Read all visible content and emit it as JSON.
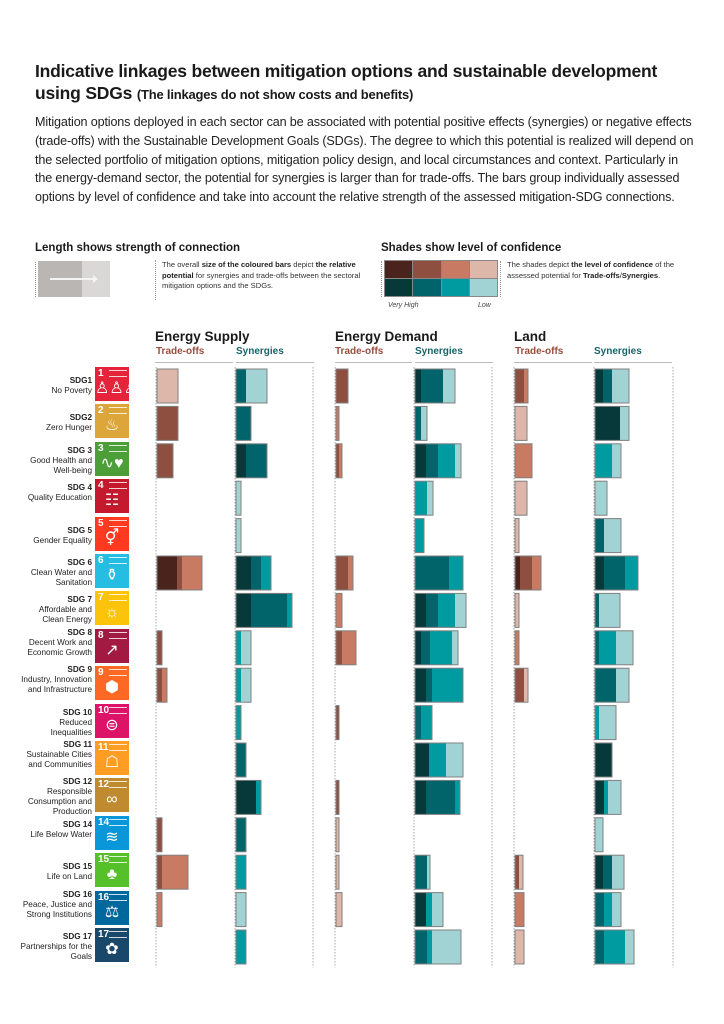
{
  "title": {
    "main": "Indicative linkages between mitigation options and sustainable development using SDGs",
    "subtitle": "(The linkages do not show costs and benefits)"
  },
  "intro": "Mitigation options deployed in each sector can be associated with potential positive effects (synergies) or negative effects (trade-offs) with the Sustainable Development Goals (SDGs). The degree to which this potential is realized will depend on the selected portfolio of mitigation options, mitigation policy design, and local circumstances and context. Particularly in the energy-demand sector, the potential for synergies is larger than for trade-offs. The bars group individually assessed options by level of confidence and take into account the relative strength of the assessed mitigation-SDG connections.",
  "legend": {
    "length": {
      "heading": "Length shows strength of connection",
      "text_pre": "The overall ",
      "text_b1": "size of the coloured bars",
      "text_mid": " depict ",
      "text_b2": "the relative potential",
      "text_post": " for synergies and trade-offs between the sectoral mitigation options and the SDGs."
    },
    "shades": {
      "heading": "Shades show level of confidence",
      "text_pre": "The shades depict ",
      "text_b": "the level of confidence",
      "text_mid": " of the assessed potential for ",
      "tradeoffs_word": "Trade-offs",
      "slash": "/",
      "synergies_word": "Synergies",
      "text_post": ".",
      "scale_high": "Very High",
      "scale_low": "Low"
    }
  },
  "colors": {
    "tradeoffs": {
      "very_high": "#4a231d",
      "high": "#8e4f40",
      "medium": "#c87a62",
      "low": "#ddb8aa"
    },
    "synergies": {
      "very_high": "#08393a",
      "high": "#01646b",
      "medium": "#009ba1",
      "low": "#a2d3d4"
    },
    "tradeoff_label": "#9a4e3e",
    "synergy_label": "#17646a"
  },
  "chart_data": {
    "type": "bar",
    "title": "Indicative linkages between mitigation options and sustainable development using SDGs",
    "orientation": "horizontal-stacked",
    "confidence_levels": [
      "very_high",
      "high",
      "medium",
      "low"
    ],
    "value_units": "relative strength (arbitrary units)",
    "sectors": [
      {
        "name": "Energy Supply"
      },
      {
        "name": "Energy Demand"
      },
      {
        "name": "Land"
      }
    ],
    "column_labels": {
      "tradeoffs": "Trade-offs",
      "synergies": "Synergies"
    },
    "sdgs": [
      {
        "num": "SDG1",
        "name": "No Poverty",
        "icon_color": "#e5243b",
        "icon_num": "1",
        "glyph": "people-icon",
        "g": "♙♙♙"
      },
      {
        "num": "SDG2",
        "name": "Zero Hunger",
        "icon_color": "#dda63a",
        "icon_num": "2",
        "glyph": "bowl-icon",
        "g": "♨"
      },
      {
        "num": "SDG 3",
        "name": "Good Health and Well-being",
        "icon_color": "#4c9f38",
        "icon_num": "3",
        "glyph": "heartbeat-icon",
        "g": "∿♥"
      },
      {
        "num": "SDG 4",
        "name": "Quality Education",
        "icon_color": "#c5192d",
        "icon_num": "4",
        "glyph": "book-icon",
        "g": "☷"
      },
      {
        "num": "SDG 5",
        "name": "Gender Equality",
        "icon_color": "#ff3a21",
        "icon_num": "5",
        "glyph": "gender-icon",
        "g": "⚥"
      },
      {
        "num": "SDG 6",
        "name": "Clean Water and Sanitation",
        "icon_color": "#26bde2",
        "icon_num": "6",
        "glyph": "water-icon",
        "g": "⚱"
      },
      {
        "num": "SDG 7",
        "name": "Affordable and Clean Energy",
        "icon_color": "#fcc30b",
        "icon_num": "7",
        "glyph": "sun-icon",
        "g": "☼"
      },
      {
        "num": "SDG 8",
        "name": "Decent Work and Economic Growth",
        "icon_color": "#a21942",
        "icon_num": "8",
        "glyph": "growth-chart-icon",
        "g": "↗"
      },
      {
        "num": "SDG 9",
        "name": "Industry, Innovation and Infrastructure",
        "icon_color": "#fd6925",
        "icon_num": "9",
        "glyph": "cubes-icon",
        "g": "⬢"
      },
      {
        "num": "SDG 10",
        "name": "Reduced Inequalities",
        "icon_color": "#dd1367",
        "icon_num": "10",
        "glyph": "equals-icon",
        "g": "⊜"
      },
      {
        "num": "SDG 11",
        "name": "Sustainable Cities and Communities",
        "icon_color": "#fd9d24",
        "icon_num": "11",
        "glyph": "city-icon",
        "g": "☖"
      },
      {
        "num": "SDG 12",
        "name": "Responsible Consumption and Production",
        "icon_color": "#bf8b2e",
        "icon_num": "12",
        "glyph": "infinity-icon",
        "g": "∞"
      },
      {
        "num": "SDG 14",
        "name": "Life Below Water",
        "icon_color": "#0a97d9",
        "icon_num": "14",
        "glyph": "fish-icon",
        "g": "≋"
      },
      {
        "num": "SDG 15",
        "name": "Life on Land",
        "icon_color": "#56c02b",
        "icon_num": "15",
        "glyph": "tree-icon",
        "g": "♣"
      },
      {
        "num": "SDG 16",
        "name": "Peace, Justice and Strong Institutions",
        "icon_color": "#00689d",
        "icon_num": "16",
        "glyph": "dove-icon",
        "g": "⚖"
      },
      {
        "num": "SDG 17",
        "name": "Partnerships for the Goals",
        "icon_color": "#19486a",
        "icon_num": "17",
        "glyph": "rings-icon",
        "g": "✿"
      }
    ],
    "series": [
      {
        "sector": "Energy Supply",
        "tradeoffs": [
          {
            "low": 21
          },
          {
            "high": 21
          },
          {
            "high": 16
          },
          {},
          {},
          {
            "very_high": 20,
            "high": 5,
            "medium": 20
          },
          {},
          {
            "high": 5
          },
          {
            "high": 5,
            "medium": 5
          },
          {},
          {},
          {},
          {
            "high": 5
          },
          {
            "high": 5,
            "medium": 26
          },
          {
            "medium": 5
          },
          {}
        ],
        "synergies": [
          {
            "high": 10,
            "low": 21
          },
          {
            "high": 15
          },
          {
            "very_high": 10,
            "high": 21
          },
          {
            "low": 5
          },
          {
            "low": 5
          },
          {
            "very_high": 15,
            "high": 10,
            "medium": 10
          },
          {
            "very_high": 15,
            "high": 36,
            "medium": 5
          },
          {
            "medium": 5,
            "low": 10
          },
          {
            "medium": 5,
            "low": 10
          },
          {
            "medium": 5
          },
          {
            "high": 10
          },
          {
            "very_high": 20,
            "medium": 5
          },
          {
            "high": 10
          },
          {
            "medium": 10
          },
          {
            "low": 10
          },
          {
            "medium": 10
          }
        ]
      },
      {
        "sector": "Energy Demand",
        "tradeoffs": [
          {
            "high": 12
          },
          {
            "medium": 3
          },
          {
            "high": 3,
            "medium": 3
          },
          {},
          {},
          {
            "high": 12,
            "medium": 5
          },
          {
            "medium": 6
          },
          {
            "high": 6,
            "medium": 14
          },
          {},
          {
            "high": 3
          },
          {},
          {
            "high": 3
          },
          {
            "low": 3
          },
          {
            "low": 3
          },
          {
            "low": 6
          },
          {}
        ],
        "synergies": [
          {
            "very_high": 6,
            "high": 22,
            "low": 12
          },
          {
            "high": 6,
            "low": 6
          },
          {
            "very_high": 11,
            "high": 12,
            "medium": 17,
            "low": 6
          },
          {
            "medium": 12,
            "low": 6
          },
          {
            "medium": 9
          },
          {
            "high": 34,
            "medium": 14
          },
          {
            "very_high": 11,
            "high": 12,
            "medium": 17,
            "low": 11
          },
          {
            "very_high": 6,
            "high": 9,
            "medium": 22,
            "low": 6
          },
          {
            "very_high": 11,
            "high": 6,
            "medium": 31
          },
          {
            "high": 6,
            "medium": 11
          },
          {
            "very_high": 14,
            "medium": 17,
            "low": 17
          },
          {
            "very_high": 11,
            "high": 29,
            "medium": 5
          },
          {},
          {
            "high": 12,
            "low": 3
          },
          {
            "very_high": 11,
            "medium": 6,
            "low": 11
          },
          {
            "high": 12,
            "medium": 5,
            "low": 29
          }
        ]
      },
      {
        "sector": "Land",
        "tradeoffs": [
          {
            "high": 9,
            "medium": 4
          },
          {
            "low": 12
          },
          {
            "medium": 17
          },
          {
            "low": 12
          },
          {
            "low": 4
          },
          {
            "very_high": 5,
            "high": 12,
            "medium": 9
          },
          {
            "low": 4
          },
          {
            "medium": 4
          },
          {
            "high": 9,
            "low": 4
          },
          {},
          {},
          {},
          {},
          {
            "high": 4,
            "low": 4
          },
          {
            "medium": 9
          },
          {
            "low": 9
          }
        ],
        "synergies": [
          {
            "very_high": 8,
            "high": 9,
            "low": 17
          },
          {
            "very_high": 25,
            "low": 9
          },
          {
            "medium": 17,
            "low": 9
          },
          {
            "low": 12
          },
          {
            "high": 9,
            "low": 17
          },
          {
            "very_high": 9,
            "high": 21,
            "medium": 13
          },
          {
            "high": 4,
            "low": 21
          },
          {
            "high": 4,
            "medium": 17,
            "low": 17
          },
          {
            "high": 21,
            "low": 13
          },
          {
            "medium": 4,
            "low": 17
          },
          {
            "very_high": 17
          },
          {
            "very_high": 9,
            "medium": 4,
            "low": 13
          },
          {
            "low": 8
          },
          {
            "very_high": 8,
            "high": 9,
            "low": 12
          },
          {
            "high": 9,
            "medium": 8,
            "low": 9
          },
          {
            "high": 9,
            "medium": 21,
            "low": 9
          }
        ]
      }
    ]
  }
}
